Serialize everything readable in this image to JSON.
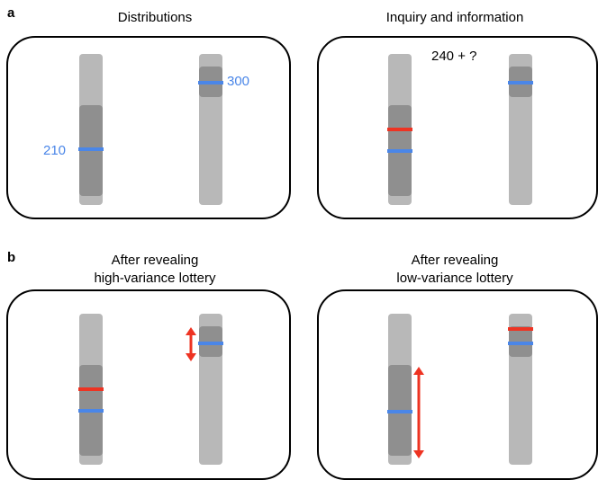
{
  "panel_a": {
    "letter": "a",
    "left_title": "Distributions",
    "right_title": "Inquiry and information",
    "value_low": "210",
    "value_high": "300",
    "inquiry_text": "240 + ?"
  },
  "panel_b": {
    "letter": "b",
    "left_title_line1": "After revealing",
    "left_title_line2": "high-variance lottery",
    "right_title_line1": "After revealing",
    "right_title_line2": "low-variance lottery"
  },
  "colors": {
    "blue": "#4a86e8",
    "red": "#ee3322",
    "bar": "#b8b8b8",
    "dark": "#8f8f8f"
  }
}
